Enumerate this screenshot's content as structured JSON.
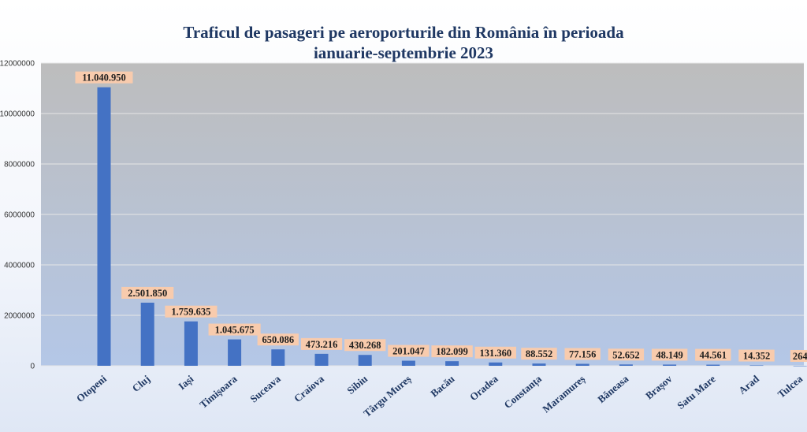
{
  "chart_data": {
    "type": "bar",
    "title_line1": "Traficul de pasageri pe aeroporturile din România în perioada",
    "title_line2": "ianuarie-septembrie 2023",
    "xlabel": "",
    "ylabel": "",
    "ylim": [
      0,
      12000000
    ],
    "yticks": [
      0,
      2000000,
      4000000,
      6000000,
      8000000,
      10000000,
      12000000
    ],
    "ytick_labels": [
      "0",
      "2000000",
      "4000000",
      "6000000",
      "8000000",
      "10000000",
      "12000000"
    ],
    "grid": true,
    "categories": [
      "Otopeni",
      "Cluj",
      "Iași",
      "Timișoara",
      "Suceava",
      "Craiova",
      "Sibiu",
      "Târgu Mureș",
      "Bacău",
      "Oradea",
      "Constanța",
      "Maramureș",
      "Băneasa",
      "Brașov",
      "Satu Mare",
      "Arad",
      "Tulcea"
    ],
    "values": [
      11040950,
      2501850,
      1759635,
      1045675,
      650086,
      473216,
      430268,
      201047,
      182099,
      131360,
      88552,
      77156,
      52652,
      48149,
      44561,
      14352,
      264
    ],
    "data_labels": [
      "11.040.950",
      "2.501.850",
      "1.759.635",
      "1.045.675",
      "650.086",
      "473.216",
      "430.268",
      "201.047",
      "182.099",
      "131.360",
      "88.552",
      "77.156",
      "52.652",
      "48.149",
      "44.561",
      "14.352",
      "264"
    ],
    "colors": {
      "bar": "#4472c4",
      "label_bg": "#f8cbad",
      "plot_top": "#bdbdbd",
      "plot_bottom": "#b4c7e7",
      "gridline": "#e6e6e6",
      "title": "#1f3863"
    }
  }
}
